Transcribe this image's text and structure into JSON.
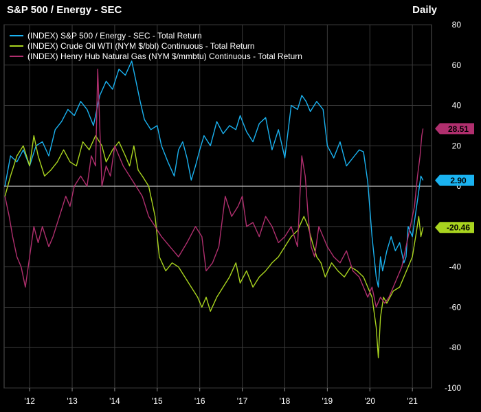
{
  "header": {
    "title": "S&P 500 / Energy - SEC",
    "frequency": "Daily"
  },
  "chart_data": {
    "type": "line",
    "title": "S&P 500 / Energy - SEC",
    "frequency": "Daily",
    "xlabel": "",
    "ylabel": "",
    "xlim": [
      2011.4,
      2021.45
    ],
    "ylim": [
      -100,
      80
    ],
    "y_ticks": [
      80,
      60,
      40,
      20,
      0,
      -20,
      -40,
      -60,
      -80,
      -100
    ],
    "y_tick_labels": [
      "80",
      "60",
      "40",
      "20",
      "0",
      "-20",
      "-40",
      "-60",
      "-80",
      "-100"
    ],
    "x_ticks": [
      2012,
      2013,
      2014,
      2015,
      2016,
      2017,
      2018,
      2019,
      2020,
      2021
    ],
    "x_tick_labels": [
      "'12",
      "'13",
      "'14",
      "'15",
      "'16",
      "'17",
      "'18",
      "'19",
      "'20",
      "'21"
    ],
    "grid": true,
    "legend_position": "top-left",
    "series": [
      {
        "name": "(INDEX) S&P 500 / Energy - SEC - Total Return",
        "color": "#1ab2f0",
        "last_value": "2.90",
        "x": [
          2011.42,
          2011.55,
          2011.7,
          2011.85,
          2012.0,
          2012.15,
          2012.3,
          2012.45,
          2012.6,
          2012.75,
          2012.9,
          2013.05,
          2013.2,
          2013.35,
          2013.5,
          2013.65,
          2013.8,
          2013.95,
          2014.1,
          2014.25,
          2014.4,
          2014.5,
          2014.6,
          2014.7,
          2014.85,
          2015.0,
          2015.1,
          2015.25,
          2015.4,
          2015.5,
          2015.6,
          2015.7,
          2015.8,
          2015.9,
          2016.0,
          2016.1,
          2016.25,
          2016.4,
          2016.55,
          2016.7,
          2016.85,
          2016.95,
          2017.1,
          2017.25,
          2017.4,
          2017.55,
          2017.7,
          2017.85,
          2018.0,
          2018.15,
          2018.3,
          2018.4,
          2018.5,
          2018.6,
          2018.75,
          2018.9,
          2019.0,
          2019.15,
          2019.3,
          2019.45,
          2019.6,
          2019.75,
          2019.85,
          2019.95,
          2020.05,
          2020.15,
          2020.2,
          2020.25,
          2020.3,
          2020.4,
          2020.5,
          2020.6,
          2020.7,
          2020.8,
          2020.85,
          2020.9,
          2021.0,
          2021.1,
          2021.2,
          2021.25
        ],
        "values": [
          0,
          15,
          12,
          18,
          10,
          20,
          22,
          15,
          28,
          32,
          38,
          35,
          42,
          38,
          30,
          45,
          52,
          48,
          58,
          55,
          62,
          52,
          42,
          33,
          28,
          30,
          20,
          12,
          5,
          18,
          22,
          14,
          3,
          10,
          18,
          25,
          20,
          32,
          26,
          30,
          28,
          35,
          27,
          22,
          31,
          34,
          18,
          28,
          14,
          40,
          38,
          45,
          42,
          37,
          42,
          38,
          20,
          14,
          22,
          10,
          14,
          18,
          17,
          2,
          -25,
          -45,
          -50,
          -35,
          -42,
          -32,
          -25,
          -32,
          -28,
          -38,
          -35,
          -20,
          -25,
          -10,
          5,
          2.9
        ]
      },
      {
        "name": "(INDEX) Crude Oil WTI (NYM $/bbl) Continuous - Total Return",
        "color": "#a9d41f",
        "last_value": "-20.46",
        "x": [
          2011.42,
          2011.55,
          2011.7,
          2011.85,
          2012.0,
          2012.1,
          2012.2,
          2012.35,
          2012.5,
          2012.65,
          2012.8,
          2012.95,
          2013.1,
          2013.25,
          2013.4,
          2013.55,
          2013.7,
          2013.8,
          2013.95,
          2014.1,
          2014.25,
          2014.35,
          2014.45,
          2014.55,
          2014.65,
          2014.8,
          2014.95,
          2015.05,
          2015.2,
          2015.35,
          2015.5,
          2015.65,
          2015.8,
          2015.95,
          2016.05,
          2016.15,
          2016.25,
          2016.4,
          2016.55,
          2016.7,
          2016.85,
          2016.95,
          2017.1,
          2017.25,
          2017.4,
          2017.55,
          2017.7,
          2017.85,
          2018.0,
          2018.15,
          2018.3,
          2018.45,
          2018.55,
          2018.65,
          2018.75,
          2018.85,
          2018.95,
          2019.1,
          2019.25,
          2019.4,
          2019.55,
          2019.7,
          2019.85,
          2019.95,
          2020.05,
          2020.15,
          2020.2,
          2020.25,
          2020.32,
          2020.4,
          2020.55,
          2020.7,
          2020.8,
          2020.9,
          2021.0,
          2021.1,
          2021.15,
          2021.2,
          2021.25
        ],
        "values": [
          -5,
          5,
          15,
          20,
          10,
          25,
          15,
          5,
          8,
          12,
          18,
          12,
          10,
          22,
          18,
          25,
          20,
          12,
          18,
          22,
          15,
          10,
          20,
          8,
          5,
          0,
          -15,
          -35,
          -42,
          -38,
          -40,
          -45,
          -50,
          -55,
          -60,
          -55,
          -62,
          -55,
          -50,
          -45,
          -38,
          -48,
          -42,
          -50,
          -45,
          -42,
          -38,
          -35,
          -30,
          -25,
          -22,
          -15,
          -20,
          -28,
          -35,
          -38,
          -45,
          -38,
          -42,
          -45,
          -40,
          -42,
          -45,
          -50,
          -55,
          -70,
          -85,
          -65,
          -55,
          -58,
          -52,
          -50,
          -45,
          -40,
          -35,
          -22,
          -15,
          -25,
          -20.46
        ]
      },
      {
        "name": "(INDEX) Henry Hub Natural Gas (NYM $/mmbtu) Continuous - Total Return",
        "color": "#b02f6e",
        "last_value": "28.51",
        "x": [
          2011.42,
          2011.52,
          2011.6,
          2011.7,
          2011.8,
          2011.9,
          2012.0,
          2012.1,
          2012.2,
          2012.3,
          2012.45,
          2012.55,
          2012.7,
          2012.85,
          2012.95,
          2013.05,
          2013.2,
          2013.35,
          2013.45,
          2013.55,
          2013.6,
          2013.7,
          2013.8,
          2013.9,
          2014.0,
          2014.1,
          2014.2,
          2014.35,
          2014.5,
          2014.65,
          2014.8,
          2014.95,
          2015.1,
          2015.3,
          2015.5,
          2015.7,
          2015.9,
          2016.05,
          2016.15,
          2016.3,
          2016.45,
          2016.6,
          2016.75,
          2016.9,
          2017.0,
          2017.1,
          2017.25,
          2017.4,
          2017.55,
          2017.7,
          2017.85,
          2018.0,
          2018.15,
          2018.3,
          2018.4,
          2018.48,
          2018.55,
          2018.62,
          2018.7,
          2018.8,
          2018.9,
          2019.0,
          2019.15,
          2019.3,
          2019.45,
          2019.6,
          2019.75,
          2019.85,
          2019.95,
          2020.05,
          2020.15,
          2020.25,
          2020.35,
          2020.45,
          2020.55,
          2020.65,
          2020.75,
          2020.85,
          2020.95,
          2021.05,
          2021.12,
          2021.18,
          2021.22,
          2021.25
        ],
        "values": [
          -5,
          -15,
          -25,
          -35,
          -40,
          -50,
          -35,
          -20,
          -28,
          -20,
          -30,
          -25,
          -15,
          -5,
          -10,
          0,
          5,
          0,
          15,
          10,
          58,
          0,
          10,
          5,
          20,
          15,
          10,
          5,
          0,
          -5,
          -15,
          -20,
          -25,
          -30,
          -35,
          -28,
          -20,
          -25,
          -42,
          -38,
          -30,
          -5,
          -15,
          -10,
          -5,
          -20,
          -18,
          -25,
          -15,
          -20,
          -28,
          -25,
          -20,
          -30,
          15,
          5,
          -15,
          -30,
          -35,
          -20,
          -25,
          -30,
          -35,
          -38,
          -32,
          -42,
          -45,
          -50,
          -55,
          -50,
          -60,
          -55,
          -58,
          -55,
          -50,
          -45,
          -40,
          -30,
          -20,
          -10,
          5,
          15,
          25,
          28.51
        ]
      }
    ]
  }
}
